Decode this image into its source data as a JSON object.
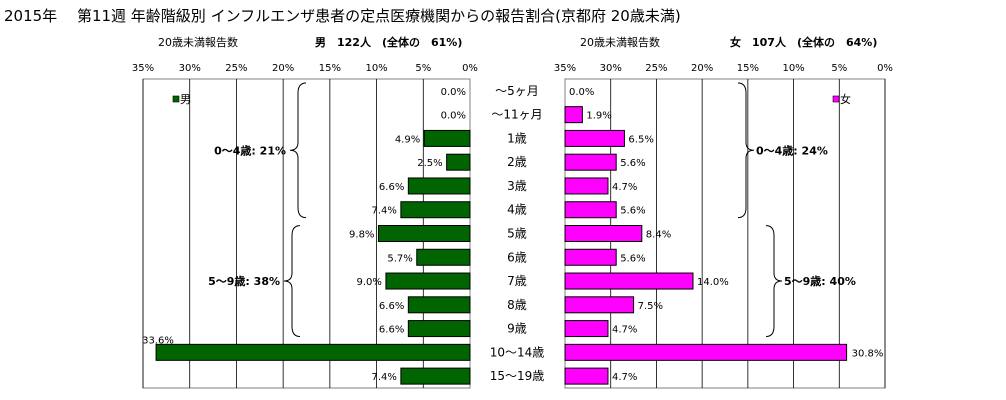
{
  "title": "2015年　 第11週 年齢階級別 インフルエンザ患者の定点医療機関からの報告割合(京都府 20歳未満)",
  "chart_data": {
    "type": "bar",
    "categories": [
      "～5ヶ月",
      "～11ヶ月",
      "1歳",
      "2歳",
      "3歳",
      "4歳",
      "5歳",
      "6歳",
      "7歳",
      "8歳",
      "9歳",
      "10～14歳",
      "15～19歳"
    ],
    "unit": "%",
    "xlim": [
      0,
      35
    ],
    "ticks": [
      "35%",
      "30%",
      "25%",
      "20%",
      "15%",
      "10%",
      "5%",
      "0%"
    ],
    "grid": true,
    "series": [
      {
        "name": "男",
        "side": "left",
        "color": "#006400",
        "caption_left": "20歳未満報告数",
        "caption_right": "男　122人　(全体の　61%)",
        "values": [
          0.0,
          0.0,
          4.9,
          2.5,
          6.6,
          7.4,
          9.8,
          5.7,
          9.0,
          6.6,
          6.6,
          33.6,
          7.4
        ],
        "labels": [
          "0.0%",
          "0.0%",
          "4.9%",
          "2.5%",
          "6.6%",
          "7.4%",
          "9.8%",
          "5.7%",
          "9.0%",
          "6.6%",
          "6.6%",
          "33.6%",
          "7.4%"
        ],
        "groups": [
          {
            "label": "0～4歳: 21%",
            "from": 0,
            "to": 5
          },
          {
            "label": "5～9歳: 38%",
            "from": 6,
            "to": 10
          }
        ]
      },
      {
        "name": "女",
        "side": "right",
        "color": "#FF00FF",
        "caption_left": "20歳未満報告数",
        "caption_right": "女　107人　(全体の　64%)",
        "values": [
          0.0,
          1.9,
          6.5,
          5.6,
          4.7,
          5.6,
          8.4,
          5.6,
          14.0,
          7.5,
          4.7,
          30.8,
          4.7
        ],
        "labels": [
          "0.0%",
          "1.9%",
          "6.5%",
          "5.6%",
          "4.7%",
          "5.6%",
          "8.4%",
          "5.6%",
          "14.0%",
          "7.5%",
          "4.7%",
          "30.8%",
          "4.7%"
        ],
        "groups": [
          {
            "label": "0～4歳: 24%",
            "from": 0,
            "to": 5
          },
          {
            "label": "5～9歳: 40%",
            "from": 6,
            "to": 10
          }
        ]
      }
    ]
  }
}
